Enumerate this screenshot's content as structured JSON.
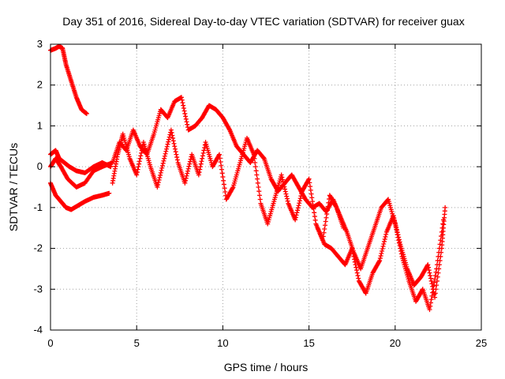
{
  "chart_data": {
    "type": "scatter",
    "title": "Day 351 of 2016, Sidereal Day-to-day VTEC variation (SDTVAR) for receiver guax",
    "xlabel": "GPS time / hours",
    "ylabel": "SDTVAR / TECUs",
    "xlim": [
      0,
      25
    ],
    "ylim": [
      -4,
      3
    ],
    "xticks": [
      "0",
      "5",
      "10",
      "15",
      "20",
      "25"
    ],
    "yticks": [
      "3",
      "2",
      "1",
      "0",
      "-1",
      "-2",
      "-3",
      "-4"
    ],
    "grid": true,
    "marker": "+",
    "marker_color": "#ff0000",
    "series": [
      {
        "name": "SDTVAR",
        "segments": [
          [
            [
              0.0,
              2.85
            ],
            [
              0.3,
              2.9
            ],
            [
              0.5,
              2.95
            ],
            [
              0.7,
              2.9
            ],
            [
              0.9,
              2.5
            ],
            [
              1.2,
              2.1
            ],
            [
              1.5,
              1.7
            ],
            [
              1.8,
              1.4
            ],
            [
              2.1,
              1.3
            ]
          ],
          [
            [
              0.0,
              0.3
            ],
            [
              0.3,
              0.4
            ],
            [
              0.5,
              0.2
            ],
            [
              0.8,
              0.1
            ],
            [
              1.1,
              0.0
            ],
            [
              1.5,
              -0.1
            ],
            [
              2.0,
              -0.15
            ],
            [
              2.5,
              0.0
            ],
            [
              3.0,
              0.1
            ],
            [
              3.5,
              0.0
            ]
          ],
          [
            [
              0.0,
              -0.4
            ],
            [
              0.3,
              -0.7
            ],
            [
              0.6,
              -0.85
            ],
            [
              0.9,
              -1.0
            ],
            [
              1.2,
              -1.05
            ],
            [
              1.6,
              -0.95
            ],
            [
              2.0,
              -0.85
            ],
            [
              2.5,
              -0.75
            ],
            [
              3.0,
              -0.7
            ],
            [
              3.4,
              -0.65
            ]
          ],
          [
            [
              0.0,
              0.0
            ],
            [
              0.3,
              0.2
            ],
            [
              0.6,
              0.0
            ],
            [
              1.0,
              -0.3
            ],
            [
              1.5,
              -0.5
            ],
            [
              2.0,
              -0.4
            ],
            [
              2.5,
              -0.1
            ],
            [
              3.0,
              0.0
            ],
            [
              3.6,
              0.1
            ],
            [
              4.0,
              0.6
            ],
            [
              4.4,
              0.4
            ],
            [
              4.8,
              0.9
            ],
            [
              5.2,
              0.5
            ],
            [
              5.6,
              0.3
            ],
            [
              6.0,
              0.8
            ],
            [
              6.4,
              1.4
            ],
            [
              6.8,
              1.2
            ],
            [
              7.2,
              1.6
            ],
            [
              7.6,
              1.7
            ],
            [
              8.0,
              0.9
            ],
            [
              8.4,
              1.0
            ],
            [
              8.8,
              1.2
            ],
            [
              9.2,
              1.5
            ],
            [
              9.6,
              1.4
            ],
            [
              10.0,
              1.2
            ],
            [
              10.4,
              0.9
            ],
            [
              10.8,
              0.5
            ],
            [
              11.2,
              0.3
            ],
            [
              11.6,
              0.1
            ],
            [
              12.0,
              0.4
            ],
            [
              12.4,
              0.2
            ],
            [
              12.8,
              -0.3
            ],
            [
              13.2,
              -0.6
            ],
            [
              13.6,
              -0.4
            ],
            [
              14.0,
              -0.2
            ],
            [
              14.4,
              -0.5
            ],
            [
              14.8,
              -0.8
            ],
            [
              15.2,
              -1.0
            ],
            [
              15.6,
              -0.9
            ],
            [
              16.0,
              -1.1
            ],
            [
              16.4,
              -0.8
            ],
            [
              16.8,
              -1.2
            ],
            [
              17.2,
              -1.6
            ],
            [
              17.6,
              -2.1
            ],
            [
              18.0,
              -2.5
            ],
            [
              18.4,
              -2.0
            ],
            [
              18.8,
              -1.5
            ],
            [
              19.2,
              -1.0
            ],
            [
              19.6,
              -0.8
            ],
            [
              20.0,
              -1.4
            ],
            [
              20.4,
              -2.2
            ],
            [
              20.8,
              -2.8
            ],
            [
              21.2,
              -3.3
            ],
            [
              21.6,
              -3.0
            ],
            [
              22.0,
              -3.5
            ],
            [
              22.4,
              -2.5
            ],
            [
              22.8,
              -1.3
            ]
          ],
          [
            [
              3.6,
              -0.4
            ],
            [
              3.9,
              0.3
            ],
            [
              4.2,
              0.8
            ],
            [
              4.6,
              0.2
            ],
            [
              5.0,
              -0.2
            ],
            [
              5.4,
              0.6
            ],
            [
              5.8,
              0.0
            ],
            [
              6.2,
              -0.5
            ],
            [
              6.6,
              0.2
            ],
            [
              7.0,
              0.9
            ],
            [
              7.4,
              0.1
            ],
            [
              7.8,
              -0.4
            ],
            [
              8.2,
              0.3
            ],
            [
              8.6,
              -0.2
            ],
            [
              9.0,
              0.6
            ],
            [
              9.4,
              0.0
            ],
            [
              9.8,
              0.3
            ],
            [
              10.2,
              -0.8
            ],
            [
              10.6,
              -0.5
            ],
            [
              11.0,
              0.1
            ],
            [
              11.4,
              0.7
            ],
            [
              11.8,
              0.3
            ],
            [
              12.2,
              -0.9
            ],
            [
              12.6,
              -1.4
            ],
            [
              13.0,
              -0.8
            ],
            [
              13.4,
              -0.2
            ],
            [
              13.8,
              -0.9
            ],
            [
              14.2,
              -1.3
            ],
            [
              14.6,
              -0.6
            ],
            [
              15.0,
              -0.3
            ],
            [
              15.4,
              -1.4
            ],
            [
              15.8,
              -1.8
            ],
            [
              16.2,
              -0.7
            ],
            [
              16.6,
              -1.0
            ],
            [
              17.0,
              -1.5
            ]
          ],
          [
            [
              15.5,
              -1.5
            ],
            [
              15.9,
              -1.9
            ],
            [
              16.3,
              -2.0
            ],
            [
              16.7,
              -2.2
            ],
            [
              17.1,
              -2.4
            ],
            [
              17.5,
              -2.0
            ],
            [
              17.9,
              -2.8
            ],
            [
              18.3,
              -3.1
            ],
            [
              18.7,
              -2.6
            ],
            [
              19.1,
              -2.3
            ],
            [
              19.5,
              -1.6
            ],
            [
              19.9,
              -1.2
            ],
            [
              20.3,
              -1.9
            ],
            [
              20.7,
              -2.5
            ],
            [
              21.1,
              -2.9
            ],
            [
              21.5,
              -2.7
            ],
            [
              21.9,
              -2.4
            ],
            [
              22.3,
              -3.2
            ],
            [
              22.7,
              -2.0
            ],
            [
              22.9,
              -1.0
            ]
          ]
        ]
      }
    ]
  }
}
